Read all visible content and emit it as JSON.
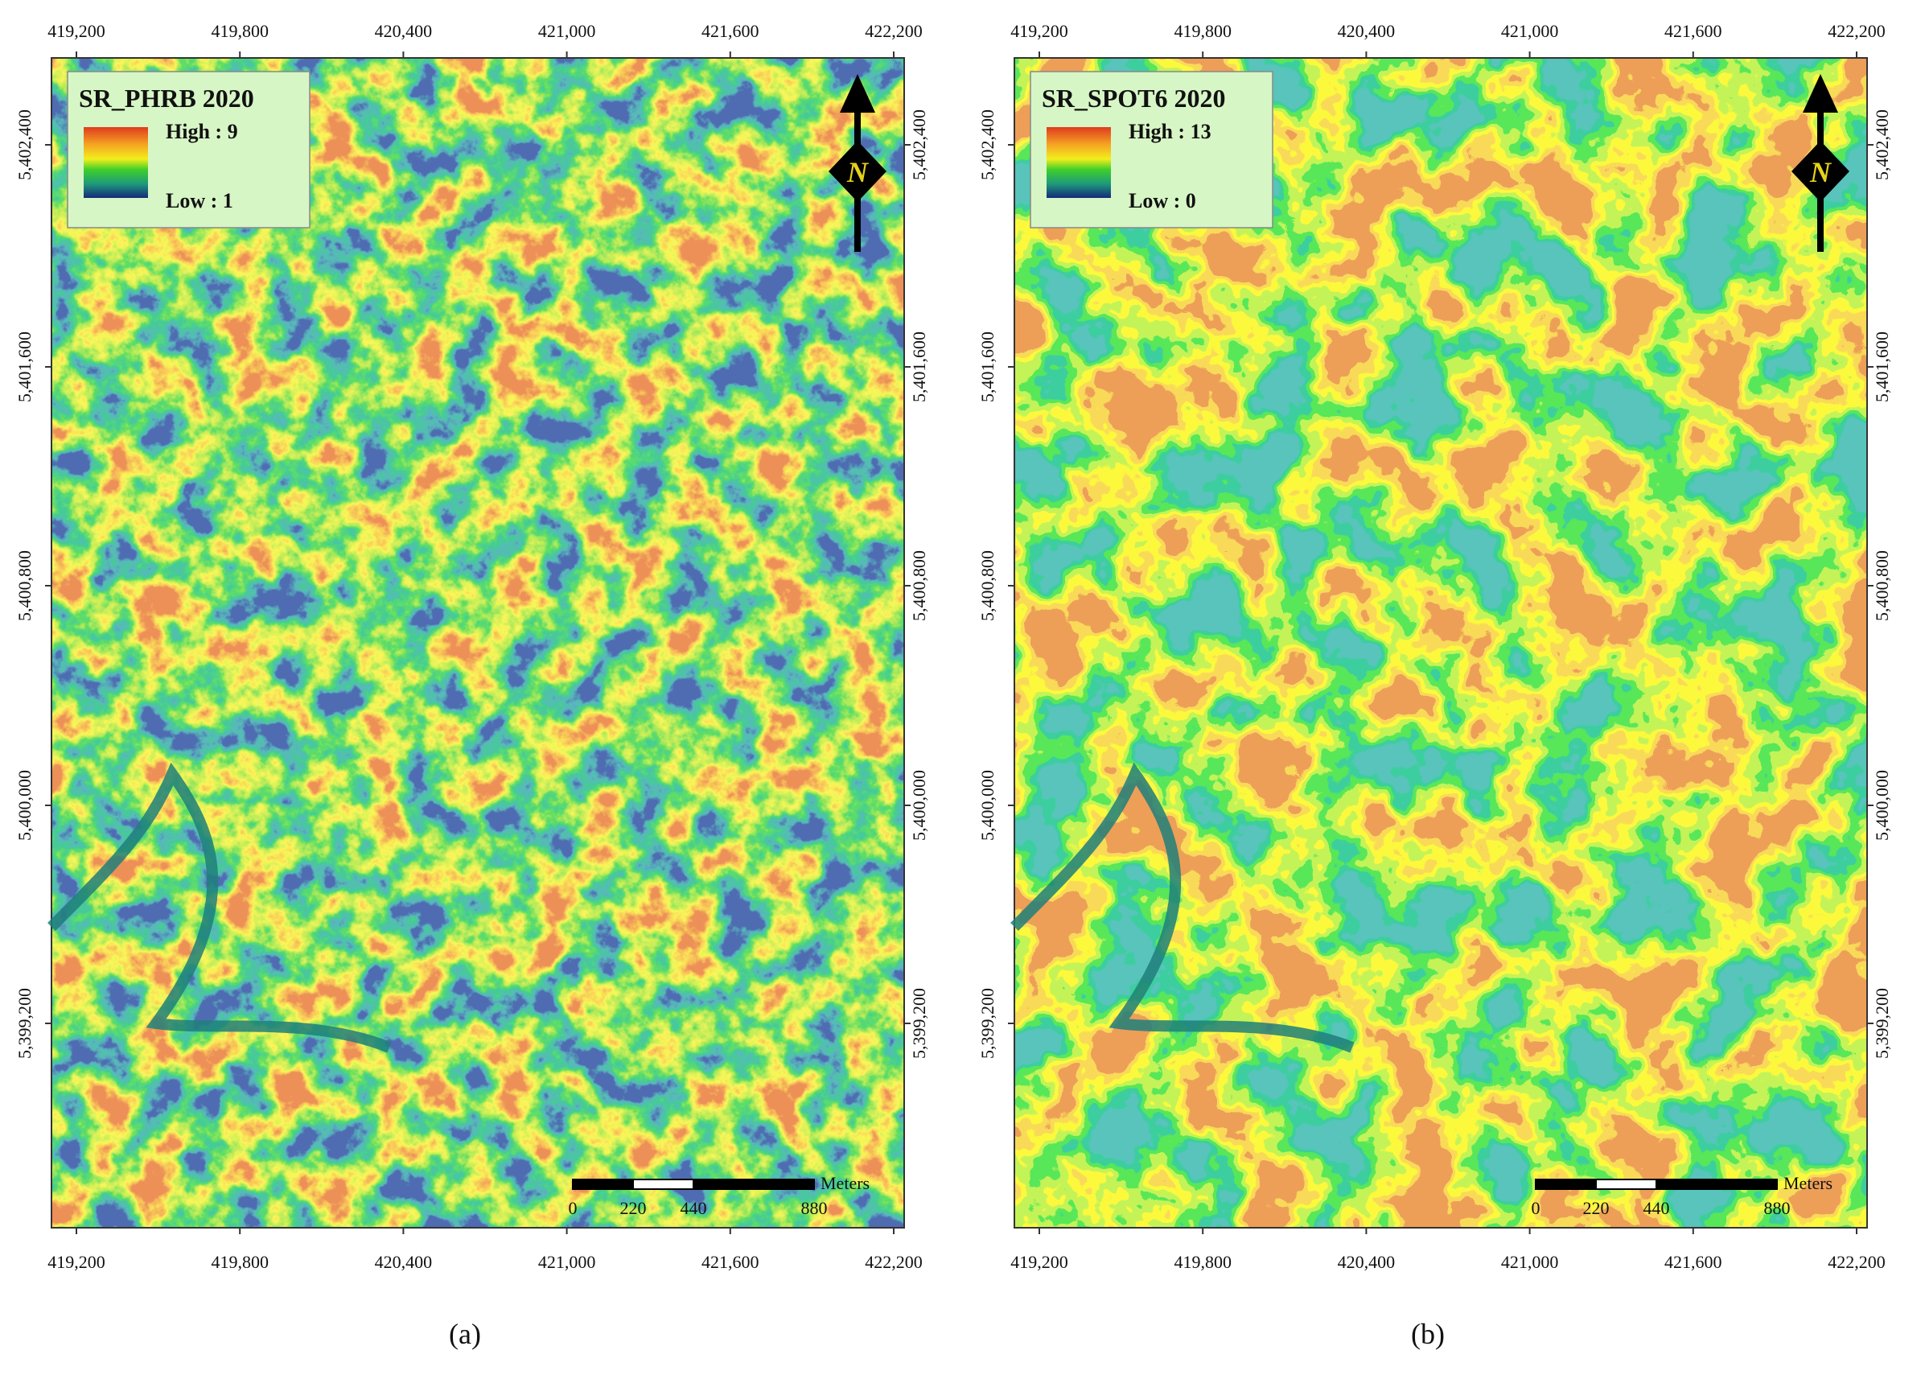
{
  "panels": [
    {
      "legend": {
        "title": "SR_PHRB 2020",
        "high": "High : 9",
        "low": "Low : 1"
      },
      "caption": "(a)"
    },
    {
      "legend": {
        "title": "SR_SPOT6 2020",
        "high": "High : 13",
        "low": "Low : 0"
      },
      "caption": "(b)"
    }
  ],
  "x_ticks": [
    "419,200",
    "419,800",
    "420,400",
    "421,000",
    "421,600",
    "422,200"
  ],
  "y_ticks": [
    "5,402,400",
    "5,401,600",
    "5,400,800",
    "5,400,000",
    "5,399,200"
  ],
  "scale_bar": {
    "unit": "Meters",
    "labels": [
      "0",
      "220",
      "440",
      "880"
    ]
  },
  "north": "N"
}
